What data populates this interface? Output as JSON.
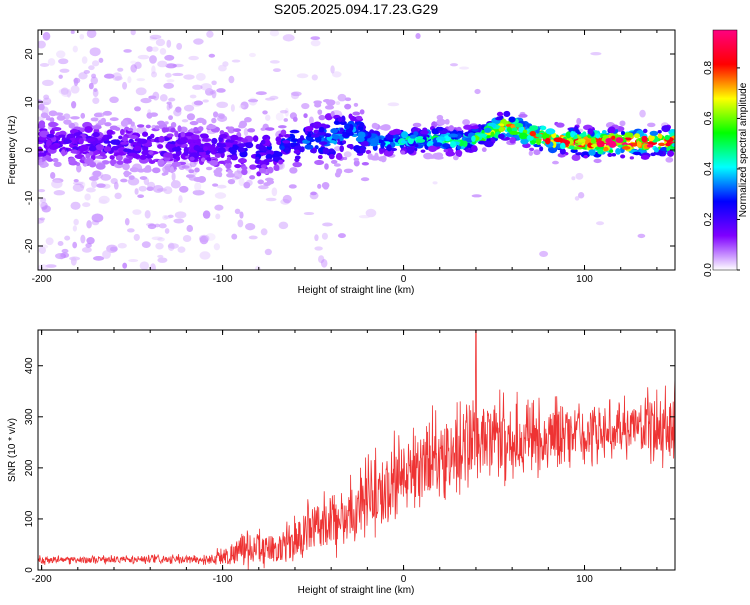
{
  "title": "S205.2025.094.17.23.G29",
  "colors": {
    "snr_line": "#ee3333",
    "axis": "#000000",
    "background": "#ffffff"
  },
  "chart_data": [
    {
      "type": "heatmap",
      "name": "spectrogram",
      "xlabel": "Height of straight line (km)",
      "ylabel": "Frequency (Hz)",
      "xlim": [
        -202,
        150
      ],
      "ylim": [
        -25,
        25
      ],
      "xticks": [
        -200,
        -100,
        0,
        100
      ],
      "xtick_labels": [
        "-200",
        "-100",
        "0",
        "100"
      ],
      "yticks": [
        -20,
        -10,
        0,
        10,
        20
      ],
      "ytick_labels": [
        "-20",
        "-10",
        "0",
        "10",
        "20"
      ],
      "colorbar_label": "Normalized spectral amplitude",
      "colorbar_range": [
        0,
        0.95
      ],
      "colorbar_ticks": [
        0,
        0.2,
        0.4,
        0.6,
        0.8
      ],
      "colorbar_tick_labels": [
        "0.0",
        "0.2",
        "0.4",
        "0.6",
        "0.8"
      ],
      "colormap": [
        "#ffffff",
        "#7f00ff",
        "#0000ff",
        "#00ffff",
        "#00ff00",
        "#ffff00",
        "#ff0000",
        "#ff0080"
      ],
      "ridge": {
        "x": [
          -200,
          -150,
          -100,
          -80,
          -60,
          -40,
          -30,
          -20,
          -10,
          0,
          10,
          20,
          30,
          40,
          50,
          55,
          60,
          70,
          80,
          90,
          100,
          110,
          120,
          130,
          140,
          150
        ],
        "frequency": [
          1.5,
          1,
          0.5,
          -1,
          1.5,
          2.5,
          4,
          2,
          1.5,
          2,
          2,
          2.5,
          1.5,
          2.5,
          4,
          5,
          5,
          3,
          2.5,
          2,
          1.5,
          1.5,
          1.5,
          1.5,
          1.5,
          2
        ],
        "peak_amplitude": [
          0.2,
          0.2,
          0.2,
          0.25,
          0.3,
          0.35,
          0.35,
          0.35,
          0.4,
          0.45,
          0.45,
          0.5,
          0.5,
          0.6,
          0.65,
          0.7,
          0.7,
          0.75,
          0.85,
          0.85,
          0.9,
          0.95,
          0.95,
          0.95,
          0.9,
          0.85
        ]
      }
    },
    {
      "type": "line",
      "name": "snr",
      "xlabel": "Height of straight line (km)",
      "ylabel": "SNR (10 * v/v)",
      "xlim": [
        -202,
        150
      ],
      "ylim": [
        0,
        470
      ],
      "xticks": [
        -200,
        -100,
        0,
        100
      ],
      "xtick_labels": [
        "-200",
        "-100",
        "0",
        "100"
      ],
      "yticks": [
        0,
        100,
        200,
        300,
        400
      ],
      "ytick_labels": [
        "0",
        "100",
        "200",
        "300",
        "400"
      ],
      "envelope": {
        "x": [
          -200,
          -150,
          -110,
          -100,
          -90,
          -80,
          -70,
          -60,
          -50,
          -40,
          -30,
          -20,
          -10,
          0,
          10,
          20,
          30,
          40,
          50,
          60,
          70,
          80,
          90,
          100,
          110,
          120,
          130,
          140,
          150
        ],
        "mean": [
          20,
          20,
          20,
          25,
          40,
          45,
          40,
          60,
          80,
          100,
          110,
          140,
          160,
          190,
          210,
          225,
          235,
          250,
          255,
          255,
          260,
          265,
          270,
          270,
          270,
          275,
          280,
          280,
          285
        ],
        "spread": [
          10,
          10,
          12,
          25,
          45,
          45,
          40,
          55,
          70,
          80,
          80,
          90,
          100,
          110,
          110,
          110,
          110,
          110,
          100,
          95,
          90,
          80,
          75,
          70,
          65,
          65,
          70,
          90,
          110
        ]
      },
      "peak": {
        "x": 40,
        "y": 470
      }
    }
  ]
}
